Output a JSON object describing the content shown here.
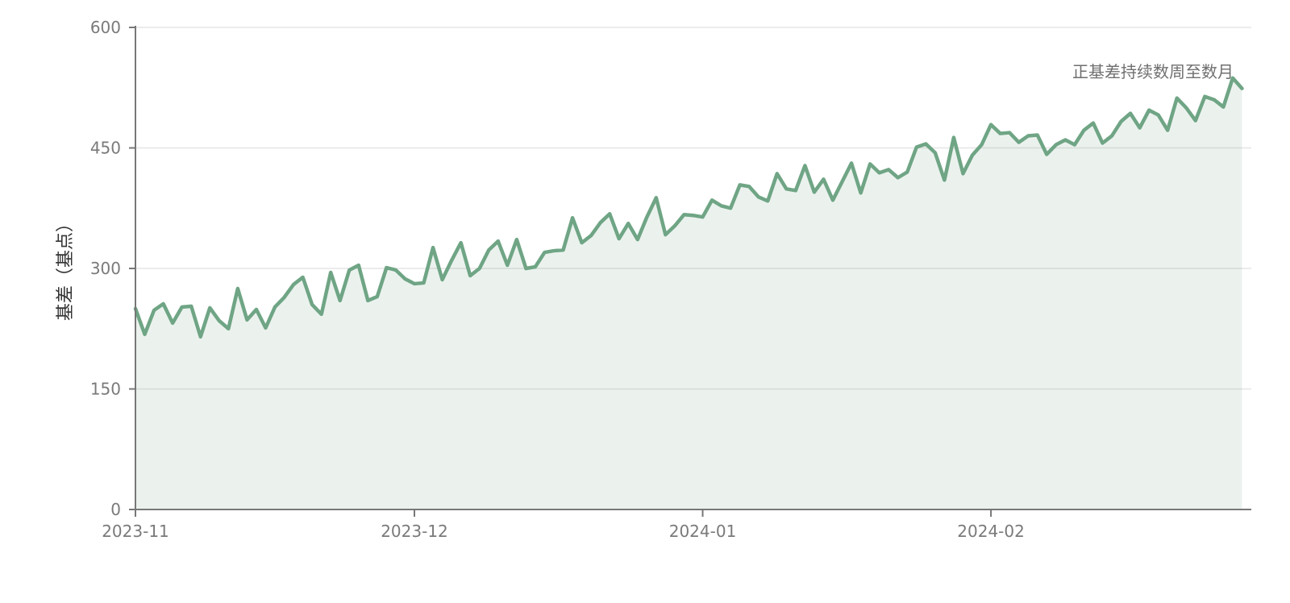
{
  "chart_data": {
    "type": "area",
    "title": "",
    "xlabel": "",
    "ylabel": "基差（基点）",
    "ylim": [
      0,
      600
    ],
    "yticks": [
      0,
      150,
      300,
      450,
      600
    ],
    "xlim": [
      "2023-11-01",
      "2024-02-29"
    ],
    "xticks": [
      {
        "date": "2023-11-01",
        "label": "2023-11"
      },
      {
        "date": "2023-12-01",
        "label": "2023-12"
      },
      {
        "date": "2024-01-01",
        "label": "2024-01"
      },
      {
        "date": "2024-02-01",
        "label": "2024-02"
      }
    ],
    "grid": "horizontal",
    "colors": {
      "line": "#6fa585",
      "fill": "#6fa585",
      "grid": "#e6e6e6",
      "axis": "#777777"
    },
    "annotation": {
      "text": "正基差持续数周至数月",
      "date": "2024-02-29",
      "value": 545
    },
    "series": [
      {
        "values": [
          {
            "x": "2023-11-01",
            "y": 250
          },
          {
            "x": "2023-11-02",
            "y": 218
          },
          {
            "x": "2023-11-03",
            "y": 248
          },
          {
            "x": "2023-11-04",
            "y": 256
          },
          {
            "x": "2023-11-05",
            "y": 232
          },
          {
            "x": "2023-11-06",
            "y": 252
          },
          {
            "x": "2023-11-07",
            "y": 253
          },
          {
            "x": "2023-11-08",
            "y": 215
          },
          {
            "x": "2023-11-09",
            "y": 251
          },
          {
            "x": "2023-11-10",
            "y": 235
          },
          {
            "x": "2023-11-11",
            "y": 225
          },
          {
            "x": "2023-11-12",
            "y": 275
          },
          {
            "x": "2023-11-13",
            "y": 236
          },
          {
            "x": "2023-11-14",
            "y": 249
          },
          {
            "x": "2023-11-15",
            "y": 226
          },
          {
            "x": "2023-11-16",
            "y": 252
          },
          {
            "x": "2023-11-17",
            "y": 264
          },
          {
            "x": "2023-11-18",
            "y": 280
          },
          {
            "x": "2023-11-19",
            "y": 289
          },
          {
            "x": "2023-11-20",
            "y": 255
          },
          {
            "x": "2023-11-21",
            "y": 243
          },
          {
            "x": "2023-11-22",
            "y": 295
          },
          {
            "x": "2023-11-23",
            "y": 260
          },
          {
            "x": "2023-11-24",
            "y": 298
          },
          {
            "x": "2023-11-25",
            "y": 304
          },
          {
            "x": "2023-11-26",
            "y": 260
          },
          {
            "x": "2023-11-27",
            "y": 265
          },
          {
            "x": "2023-11-28",
            "y": 301
          },
          {
            "x": "2023-11-29",
            "y": 298
          },
          {
            "x": "2023-11-30",
            "y": 287
          },
          {
            "x": "2023-12-01",
            "y": 281
          },
          {
            "x": "2023-12-02",
            "y": 282
          },
          {
            "x": "2023-12-03",
            "y": 326
          },
          {
            "x": "2023-12-04",
            "y": 286
          },
          {
            "x": "2023-12-05",
            "y": 310
          },
          {
            "x": "2023-12-06",
            "y": 332
          },
          {
            "x": "2023-12-07",
            "y": 291
          },
          {
            "x": "2023-12-08",
            "y": 300
          },
          {
            "x": "2023-12-09",
            "y": 323
          },
          {
            "x": "2023-12-10",
            "y": 334
          },
          {
            "x": "2023-12-11",
            "y": 304
          },
          {
            "x": "2023-12-12",
            "y": 336
          },
          {
            "x": "2023-12-13",
            "y": 300
          },
          {
            "x": "2023-12-14",
            "y": 302
          },
          {
            "x": "2023-12-15",
            "y": 320
          },
          {
            "x": "2023-12-16",
            "y": 322
          },
          {
            "x": "2023-12-17",
            "y": 323
          },
          {
            "x": "2023-12-18",
            "y": 363
          },
          {
            "x": "2023-12-19",
            "y": 332
          },
          {
            "x": "2023-12-20",
            "y": 341
          },
          {
            "x": "2023-12-21",
            "y": 357
          },
          {
            "x": "2023-12-22",
            "y": 368
          },
          {
            "x": "2023-12-23",
            "y": 337
          },
          {
            "x": "2023-12-24",
            "y": 356
          },
          {
            "x": "2023-12-25",
            "y": 336
          },
          {
            "x": "2023-12-26",
            "y": 364
          },
          {
            "x": "2023-12-27",
            "y": 388
          },
          {
            "x": "2023-12-28",
            "y": 342
          },
          {
            "x": "2023-12-29",
            "y": 353
          },
          {
            "x": "2023-12-30",
            "y": 367
          },
          {
            "x": "2023-12-31",
            "y": 366
          },
          {
            "x": "2024-01-01",
            "y": 364
          },
          {
            "x": "2024-01-02",
            "y": 385
          },
          {
            "x": "2024-01-03",
            "y": 378
          },
          {
            "x": "2024-01-04",
            "y": 375
          },
          {
            "x": "2024-01-05",
            "y": 404
          },
          {
            "x": "2024-01-06",
            "y": 402
          },
          {
            "x": "2024-01-07",
            "y": 389
          },
          {
            "x": "2024-01-08",
            "y": 384
          },
          {
            "x": "2024-01-09",
            "y": 418
          },
          {
            "x": "2024-01-10",
            "y": 399
          },
          {
            "x": "2024-01-11",
            "y": 397
          },
          {
            "x": "2024-01-12",
            "y": 428
          },
          {
            "x": "2024-01-13",
            "y": 395
          },
          {
            "x": "2024-01-14",
            "y": 411
          },
          {
            "x": "2024-01-15",
            "y": 385
          },
          {
            "x": "2024-01-16",
            "y": 408
          },
          {
            "x": "2024-01-17",
            "y": 431
          },
          {
            "x": "2024-01-18",
            "y": 394
          },
          {
            "x": "2024-01-19",
            "y": 430
          },
          {
            "x": "2024-01-20",
            "y": 419
          },
          {
            "x": "2024-01-21",
            "y": 423
          },
          {
            "x": "2024-01-22",
            "y": 413
          },
          {
            "x": "2024-01-23",
            "y": 420
          },
          {
            "x": "2024-01-24",
            "y": 451
          },
          {
            "x": "2024-01-25",
            "y": 455
          },
          {
            "x": "2024-01-26",
            "y": 444
          },
          {
            "x": "2024-01-27",
            "y": 410
          },
          {
            "x": "2024-01-28",
            "y": 463
          },
          {
            "x": "2024-01-29",
            "y": 418
          },
          {
            "x": "2024-01-30",
            "y": 441
          },
          {
            "x": "2024-01-31",
            "y": 454
          },
          {
            "x": "2024-02-01",
            "y": 479
          },
          {
            "x": "2024-02-02",
            "y": 468
          },
          {
            "x": "2024-02-03",
            "y": 469
          },
          {
            "x": "2024-02-04",
            "y": 457
          },
          {
            "x": "2024-02-05",
            "y": 465
          },
          {
            "x": "2024-02-06",
            "y": 466
          },
          {
            "x": "2024-02-07",
            "y": 442
          },
          {
            "x": "2024-02-08",
            "y": 454
          },
          {
            "x": "2024-02-09",
            "y": 460
          },
          {
            "x": "2024-02-10",
            "y": 454
          },
          {
            "x": "2024-02-11",
            "y": 472
          },
          {
            "x": "2024-02-12",
            "y": 481
          },
          {
            "x": "2024-02-13",
            "y": 456
          },
          {
            "x": "2024-02-14",
            "y": 465
          },
          {
            "x": "2024-02-15",
            "y": 483
          },
          {
            "x": "2024-02-16",
            "y": 493
          },
          {
            "x": "2024-02-17",
            "y": 475
          },
          {
            "x": "2024-02-18",
            "y": 497
          },
          {
            "x": "2024-02-19",
            "y": 491
          },
          {
            "x": "2024-02-20",
            "y": 472
          },
          {
            "x": "2024-02-21",
            "y": 512
          },
          {
            "x": "2024-02-22",
            "y": 500
          },
          {
            "x": "2024-02-23",
            "y": 484
          },
          {
            "x": "2024-02-24",
            "y": 514
          },
          {
            "x": "2024-02-25",
            "y": 510
          },
          {
            "x": "2024-02-26",
            "y": 501
          },
          {
            "x": "2024-02-27",
            "y": 537
          },
          {
            "x": "2024-02-28",
            "y": 524
          }
        ]
      }
    ]
  }
}
